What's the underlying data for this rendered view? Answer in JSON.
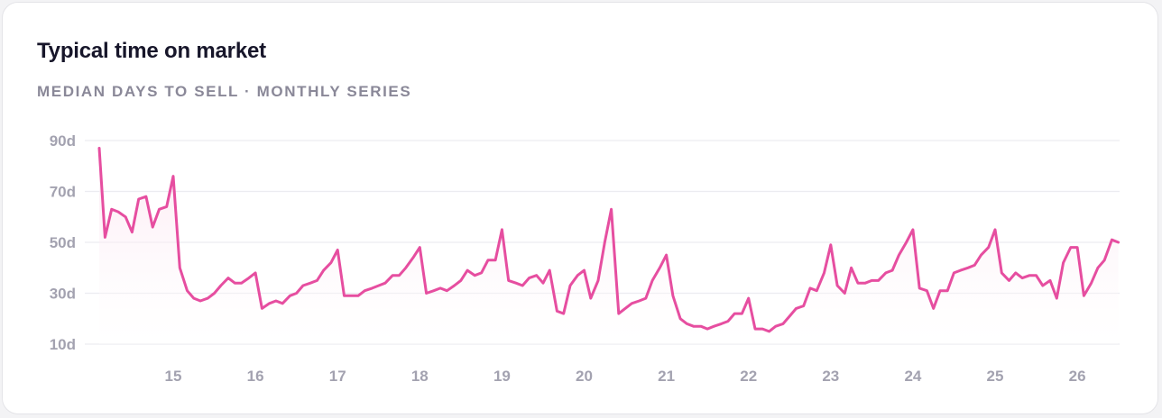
{
  "card": {
    "title": "Typical time on market",
    "subtitle": "MEDIAN DAYS TO SELL · MONTHLY SERIES"
  },
  "colors": {
    "line": "#e64ea0",
    "area_top": "#fbe1ee",
    "grid": "#ececf1",
    "tick_text": "#a3a2b0"
  },
  "chart_data": {
    "type": "line",
    "title": "Typical time on market",
    "subtitle": "MEDIAN DAYS TO SELL · MONTHLY SERIES",
    "ylim": [
      10,
      90
    ],
    "y_ticks": [
      90,
      70,
      50,
      30,
      10
    ],
    "y_tick_labels": [
      "90d",
      "70d",
      "50d",
      "30d",
      "10d"
    ],
    "x_ticks": [
      15,
      16,
      17,
      18,
      19,
      20,
      21,
      22,
      23,
      24,
      25,
      26
    ],
    "x_tick_labels": [
      "15",
      "16",
      "17",
      "18",
      "19",
      "20",
      "21",
      "22",
      "23",
      "24",
      "25",
      "26"
    ],
    "xlim": [
      14.1,
      26.5
    ],
    "grid": true,
    "legend": "none",
    "series": [
      {
        "x": [
          14.1,
          14.17,
          14.25,
          14.33,
          14.42,
          14.5,
          14.58,
          14.67,
          14.75,
          14.83,
          14.92,
          15.0,
          15.08,
          15.17,
          15.25,
          15.33,
          15.42,
          15.5,
          15.58,
          15.67,
          15.75,
          15.83,
          15.92,
          16.0,
          16.08,
          16.17,
          16.25,
          16.33,
          16.42,
          16.5,
          16.58,
          16.67,
          16.75,
          16.83,
          16.92,
          17.0,
          17.08,
          17.17,
          17.25,
          17.33,
          17.42,
          17.5,
          17.58,
          17.67,
          17.75,
          17.83,
          17.92,
          18.0,
          18.08,
          18.17,
          18.25,
          18.33,
          18.42,
          18.5,
          18.58,
          18.67,
          18.75,
          18.83,
          18.92,
          19.0,
          19.08,
          19.17,
          19.25,
          19.33,
          19.42,
          19.5,
          19.58,
          19.67,
          19.75,
          19.83,
          19.92,
          20.0,
          20.08,
          20.17,
          20.25,
          20.33,
          20.42,
          20.5,
          20.58,
          20.67,
          20.75,
          20.83,
          20.92,
          21.0,
          21.08,
          21.17,
          21.25,
          21.33,
          21.42,
          21.5,
          21.58,
          21.67,
          21.75,
          21.83,
          21.92,
          22.0,
          22.08,
          22.17,
          22.25,
          22.33,
          22.42,
          22.5,
          22.58,
          22.67,
          22.75,
          22.83,
          22.92,
          23.0,
          23.08,
          23.17,
          23.25,
          23.33,
          23.42,
          23.5,
          23.58,
          23.67,
          23.75,
          23.83,
          23.92,
          24.0,
          24.08,
          24.17,
          24.25,
          24.33,
          24.42,
          24.5,
          24.58,
          24.67,
          24.75,
          24.83,
          24.92,
          25.0,
          25.08,
          25.17,
          25.25,
          25.33,
          25.42,
          25.5,
          25.58,
          25.67,
          25.75,
          25.83,
          25.92,
          26.0,
          26.08,
          26.17,
          26.25,
          26.33,
          26.42,
          26.5
        ],
        "values": [
          87,
          52,
          63,
          62,
          60,
          54,
          67,
          68,
          56,
          63,
          64,
          76,
          40,
          31,
          28,
          27,
          28,
          30,
          33,
          36,
          34,
          34,
          36,
          38,
          24,
          26,
          27,
          26,
          29,
          30,
          33,
          34,
          35,
          39,
          42,
          47,
          29,
          29,
          29,
          31,
          32,
          33,
          34,
          37,
          37,
          40,
          44,
          48,
          30,
          31,
          32,
          31,
          33,
          35,
          39,
          37,
          38,
          43,
          43,
          55,
          35,
          34,
          33,
          36,
          37,
          34,
          39,
          23,
          22,
          33,
          37,
          39,
          28,
          35,
          50,
          63,
          22,
          24,
          26,
          27,
          28,
          35,
          40,
          45,
          29,
          20,
          18,
          17,
          17,
          16,
          17,
          18,
          19,
          22,
          22,
          28,
          16,
          16,
          15,
          17,
          18,
          21,
          24,
          25,
          32,
          31,
          38,
          49,
          33,
          30,
          40,
          34,
          34,
          35,
          35,
          38,
          39,
          45,
          50,
          55,
          32,
          31,
          24,
          31,
          31,
          38,
          39,
          40,
          41,
          45,
          48,
          55,
          38,
          35,
          38,
          36,
          37,
          37,
          33,
          35,
          28,
          42,
          48,
          48,
          29,
          34,
          40,
          43,
          51,
          50
        ]
      }
    ]
  }
}
